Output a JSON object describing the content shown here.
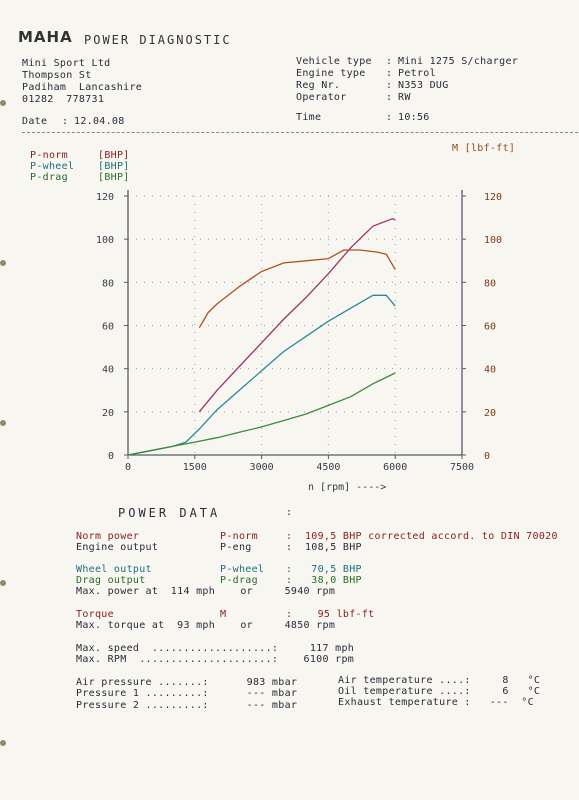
{
  "header": {
    "logo": "MAHA",
    "title": "POWER DIAGNOSTIC",
    "company": [
      "Mini Sport Ltd",
      "Thompson St",
      "Padiham  Lancashire",
      "01282  778731"
    ],
    "date_label": "Date",
    "date_value": "12.04.08",
    "vehicle_type_label": "Vehicle type",
    "vehicle_type_value": "Mini 1275 S/charger",
    "engine_type_label": "Engine type",
    "engine_type_value": "Petrol",
    "reg_label": "Reg Nr.",
    "reg_value": "N353 DUG",
    "operator_label": "Operator",
    "operator_value": "RW",
    "time_label": "Time",
    "time_value": "10:56"
  },
  "legend": {
    "p_norm": "P-norm",
    "p_wheel": "P-wheel",
    "p_drag": "P-drag",
    "unit": "[BHP]",
    "torque_label": "M [lbf-ft]"
  },
  "colors": {
    "p_norm": "#a0306e",
    "p_wheel": "#2a8a98",
    "p_drag": "#3f8a3a",
    "torque": "#b0521d",
    "axis": "#5a5a6a"
  },
  "chart_data": {
    "type": "line",
    "xlabel": "n [rpm] ---->",
    "xlim": [
      0,
      7500
    ],
    "x_ticks": [
      "0",
      "1500",
      "3000",
      "4500",
      "6000",
      "7500"
    ],
    "ylim_left": [
      0,
      120
    ],
    "y_ticks_left": [
      "0",
      "20",
      "40",
      "60",
      "80",
      "100",
      "120"
    ],
    "ylim_right": [
      0,
      120
    ],
    "y_ticks_right": [
      "0",
      "20",
      "40",
      "60",
      "80",
      "100",
      "120"
    ],
    "grid": "dotted",
    "series": [
      {
        "name": "P-norm",
        "axis": "left",
        "x": [
          1600,
          2000,
          2500,
          3000,
          3500,
          4000,
          4500,
          5000,
          5500,
          5940,
          6000
        ],
        "y": [
          20,
          30,
          41,
          52,
          63,
          73,
          84,
          96,
          106,
          109.5,
          109
        ]
      },
      {
        "name": "P-wheel",
        "axis": "left",
        "x": [
          0,
          500,
          1000,
          1300,
          1500,
          1600,
          2000,
          2500,
          3000,
          3500,
          4000,
          4500,
          5000,
          5500,
          5800,
          6000
        ],
        "y": [
          0,
          2,
          4,
          6,
          10,
          12,
          21,
          30,
          39,
          48,
          55,
          62,
          68,
          74,
          74,
          69
        ]
      },
      {
        "name": "P-drag",
        "axis": "left",
        "x": [
          0,
          500,
          1000,
          1500,
          2000,
          2500,
          3000,
          3500,
          4000,
          4500,
          5000,
          5500,
          6000
        ],
        "y": [
          0,
          2,
          4,
          6,
          8,
          10.5,
          13,
          16,
          19,
          23,
          27,
          33,
          38
        ]
      },
      {
        "name": "M",
        "axis": "right",
        "x": [
          1600,
          1800,
          2000,
          2500,
          3000,
          3500,
          4000,
          4500,
          4850,
          5200,
          5600,
          5800,
          6000
        ],
        "y": [
          59,
          66,
          70,
          78,
          85,
          89,
          90,
          91,
          95,
          95,
          94,
          93,
          86
        ]
      }
    ]
  },
  "power_data": {
    "heading": "POWER DATA",
    "colon": ":",
    "norm_power_label": "Norm power",
    "norm_power_sym": "P-norm",
    "norm_power_value": ":  109,5 BHP corrected accord. to DIN 70020",
    "engine_output_label": "Engine output",
    "engine_output_sym": "P-eng",
    "engine_output_value": ":  108,5 BHP",
    "wheel_output_label": "Wheel output",
    "wheel_output_sym": "P-wheel",
    "wheel_output_value": ":   70,5 BHP",
    "drag_output_label": "Drag output",
    "drag_output_sym": "P-drag",
    "drag_output_value": ":   38,0 BHP",
    "max_power_line": "Max. power at  114 mph    or     5940 rpm",
    "torque_label": "Torque",
    "torque_sym": "M",
    "torque_value": ":    95 lbf-ft",
    "max_torque_line": "Max. torque at  93 mph    or     4850 rpm",
    "max_speed_line": "Max. speed  ...................:     117 mph",
    "max_rpm_line": "Max. RPM  .....................:    6100 rpm",
    "air_pressure_line": "Air pressure .......:      983 mbar",
    "pressure1_line": "Pressure 1 .........:      --- mbar",
    "pressure2_line": "Pressure 2 .........:      --- mbar",
    "air_temp_line": "Air temperature ....:     8   °C",
    "oil_temp_line": "Oil temperature ....:     6   °C",
    "exhaust_temp_line": "Exhaust temperature :   ---  °C"
  }
}
